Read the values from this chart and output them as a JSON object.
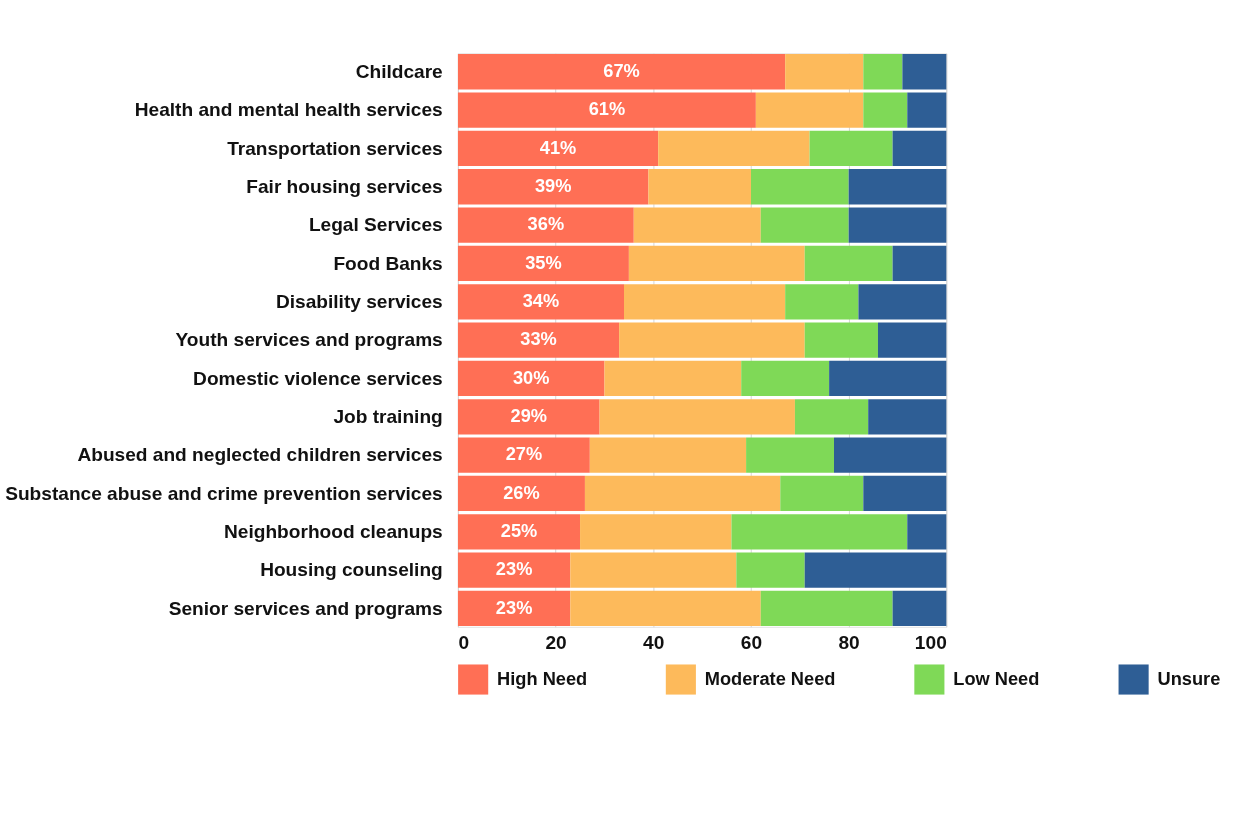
{
  "chart_data": {
    "type": "bar",
    "orientation": "horizontal",
    "stacked": true,
    "categories": [
      "Childcare",
      "Health and mental health services",
      "Transportation services",
      "Fair housing services",
      "Legal Services",
      "Food Banks",
      "Disability services",
      "Youth services and programs",
      "Domestic violence services",
      "Job training",
      "Abused and neglected children services",
      "Substance abuse and crime prevention services",
      "Neighborhood cleanups",
      "Housing counseling",
      "Senior services and programs"
    ],
    "series": [
      {
        "name": "High Need",
        "color": "#ff6f55",
        "values": [
          67,
          61,
          41,
          39,
          36,
          35,
          34,
          33,
          30,
          29,
          27,
          26,
          25,
          23,
          23
        ],
        "value_labels": [
          "67%",
          "61%",
          "41%",
          "39%",
          "36%",
          "35%",
          "34%",
          "33%",
          "30%",
          "29%",
          "27%",
          "26%",
          "25%",
          "23%",
          "23%"
        ]
      },
      {
        "name": "Moderate Need",
        "color": "#fdba5b",
        "values": [
          16,
          22,
          31,
          21,
          26,
          36,
          33,
          38,
          28,
          40,
          32,
          40,
          31,
          34,
          39
        ]
      },
      {
        "name": "Low Need",
        "color": "#7fd957",
        "values": [
          8,
          9,
          17,
          20,
          18,
          18,
          15,
          15,
          18,
          15,
          18,
          17,
          36,
          14,
          27
        ]
      },
      {
        "name": "Unsure",
        "color": "#2e5e95",
        "values": [
          9,
          8,
          11,
          20,
          20,
          11,
          18,
          14,
          24,
          16,
          23,
          17,
          8,
          29,
          11
        ]
      }
    ],
    "xlim": [
      0,
      100
    ],
    "xticks": [
      0,
      20,
      40,
      60,
      80,
      100
    ],
    "grid": "x",
    "legend": "bottom"
  }
}
